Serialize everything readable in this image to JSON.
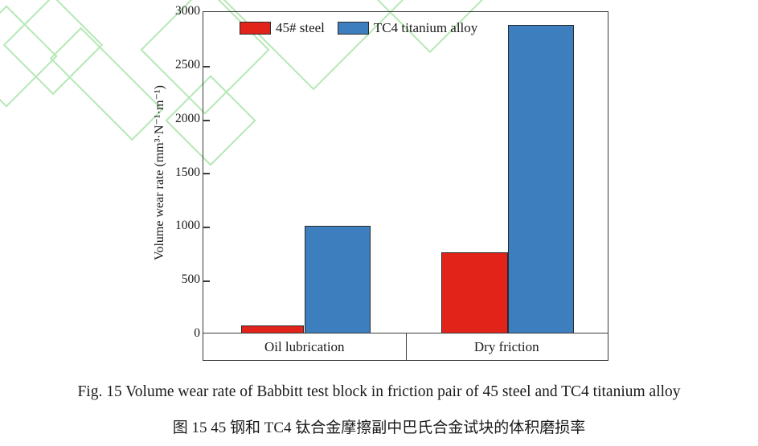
{
  "decor": {
    "watermark_color": "#b5e8b5"
  },
  "chart_data": {
    "type": "bar",
    "title": "",
    "categories": [
      "Oil lubrication",
      "Dry friction"
    ],
    "series": [
      {
        "name": "45# steel",
        "color": "#e2231a",
        "values": [
          65,
          750
        ]
      },
      {
        "name": "TC4 titanium alloy",
        "color": "#3d7ebf",
        "values": [
          1000,
          2880
        ]
      }
    ],
    "ylabel": "Volume wear rate (mm³·N⁻¹·m⁻¹)",
    "ylim": [
      0,
      3000
    ],
    "yticks": [
      0,
      500,
      1000,
      1500,
      2000,
      2500,
      3000
    ],
    "legend_position": "top-inside",
    "grid": false
  },
  "caption": {
    "english": "Fig. 15 Volume wear rate of Babbitt test block in friction pair of 45 steel and TC4 titanium alloy",
    "chinese": "图 15 45 钢和 TC4 钛合金摩擦副中巴氏合金试块的体积磨损率"
  }
}
